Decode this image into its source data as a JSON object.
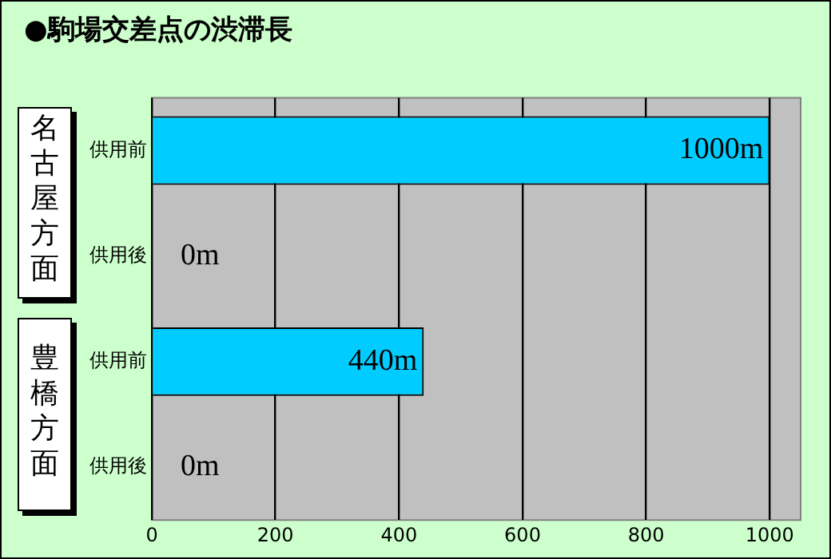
{
  "chart_data": {
    "type": "bar",
    "orientation": "horizontal",
    "title": "●駒場交差点の渋滞長",
    "categories": [
      "供用前",
      "供用後",
      "供用前",
      "供用後"
    ],
    "values": [
      1000,
      0,
      440,
      0
    ],
    "value_labels": [
      "1000m",
      "0m",
      "440m",
      "0m"
    ],
    "color": "#00ccff",
    "xlim": [
      0,
      1050
    ],
    "xticks": [
      0,
      200,
      400,
      600,
      800,
      1000
    ],
    "grid": "x",
    "legend": false,
    "annotations": [
      "名古屋方面",
      "豊橋方面"
    ]
  }
}
